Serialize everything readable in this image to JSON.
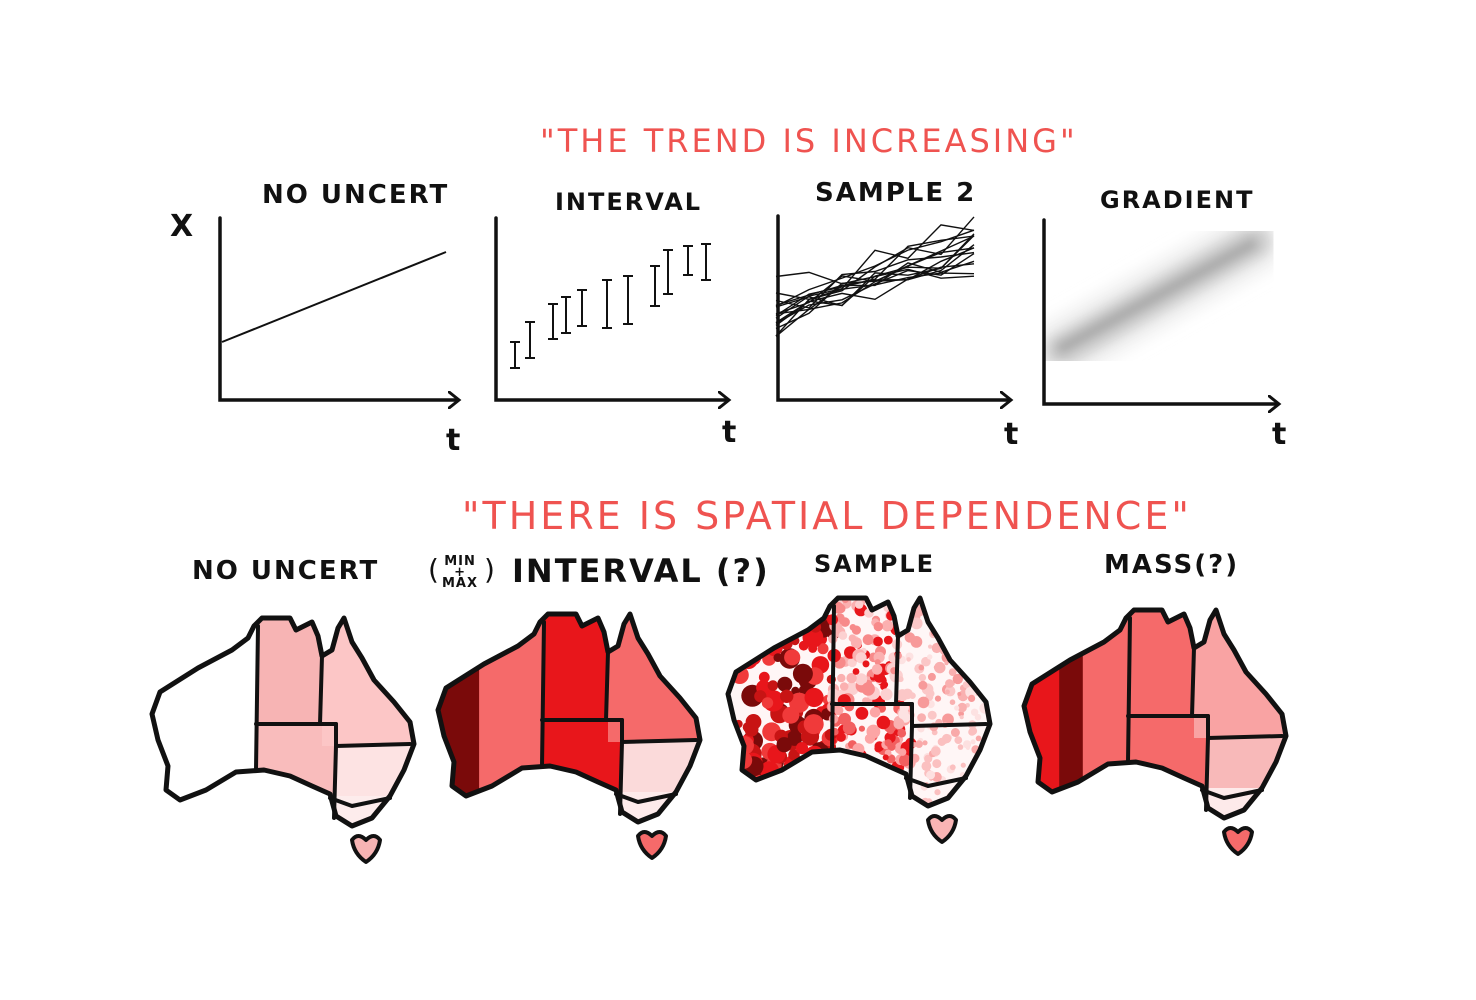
{
  "headline_top": "\"THE TREND IS INCREASING\"",
  "headline_bottom": "\"THERE IS SPATIAL DEPENDENCE\"",
  "trend_panels": [
    {
      "title": "NO UNCERT",
      "y_label": "X",
      "x_label": "t"
    },
    {
      "title": "INTERVAL",
      "x_label": "t"
    },
    {
      "title": "SAMPLE 2",
      "x_label": "t"
    },
    {
      "title": "GRADIENT",
      "x_label": "t"
    }
  ],
  "map_panels": [
    {
      "title": "NO UNCERT"
    },
    {
      "title": "INTERVAL (?)",
      "prefix_top": "MIN",
      "prefix_mid": "+",
      "prefix_bottom": "MAX"
    },
    {
      "title": "SAMPLE"
    },
    {
      "title": "MASS(?)"
    }
  ],
  "colors": {
    "accent_red": "#ef5350",
    "ink": "#111111",
    "light_pink": "#f7b4b4",
    "pale_pink": "#fde3e3",
    "mid_red": "#f56a6a",
    "bright_red": "#e8161b",
    "dark_red": "#7a0a0a"
  }
}
